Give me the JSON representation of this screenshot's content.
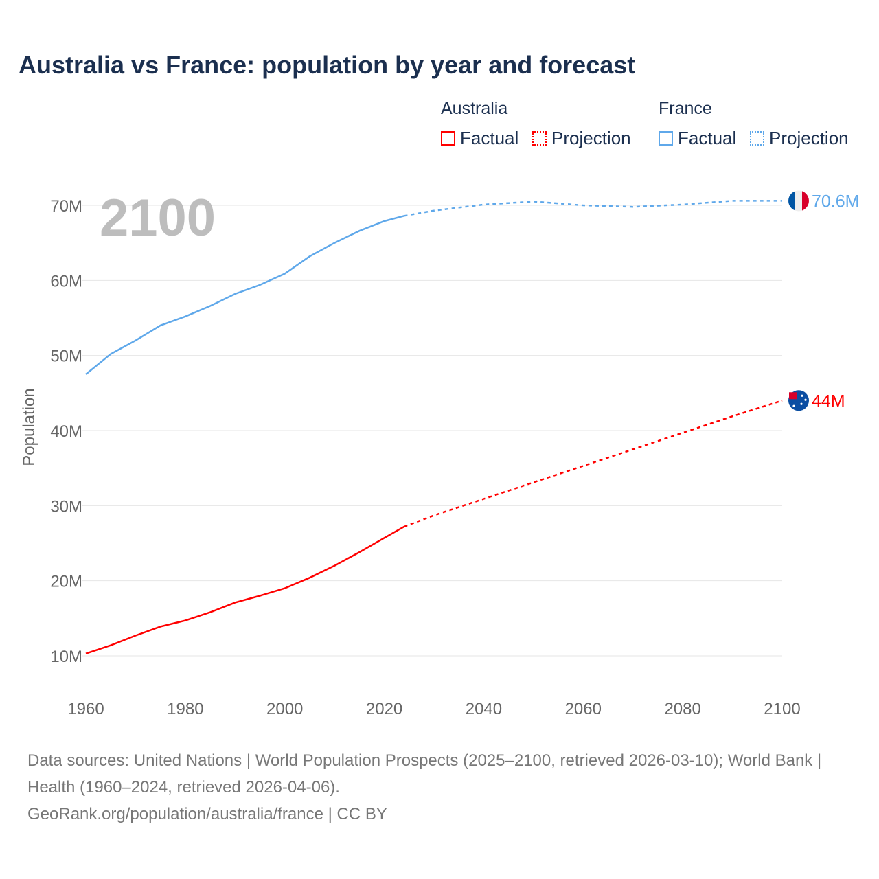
{
  "title": "Australia vs France: population by year and forecast",
  "legend": {
    "groups": [
      {
        "name": "Australia",
        "color": "#ff0000",
        "items": [
          "Factual",
          "Projection"
        ]
      },
      {
        "name": "France",
        "color": "#5fa8ea",
        "items": [
          "Factual",
          "Projection"
        ]
      }
    ]
  },
  "chart_data": {
    "type": "line",
    "title": "Australia vs France: population by year and forecast",
    "xlabel": "",
    "ylabel": "Population",
    "xlim": [
      1960,
      2100
    ],
    "ylim": [
      5,
      75
    ],
    "xticks": [
      "1960",
      "1980",
      "2000",
      "2020",
      "2040",
      "2060",
      "2080",
      "2100"
    ],
    "yticks": [
      "10M",
      "20M",
      "30M",
      "40M",
      "50M",
      "60M",
      "70M"
    ],
    "year_label": "2100",
    "series": [
      {
        "name": "France",
        "color": "#5fa8ea",
        "end_label": "70.6M",
        "factual": {
          "x": [
            1960,
            1965,
            1970,
            1975,
            1980,
            1985,
            1990,
            1995,
            2000,
            2005,
            2010,
            2015,
            2020,
            2024
          ],
          "y": [
            47.5,
            50.2,
            52.0,
            54.0,
            55.2,
            56.6,
            58.2,
            59.4,
            60.9,
            63.2,
            65.0,
            66.6,
            67.9,
            68.6
          ]
        },
        "projection": {
          "x": [
            2024,
            2030,
            2040,
            2050,
            2060,
            2070,
            2080,
            2090,
            2100
          ],
          "y": [
            68.6,
            69.3,
            70.1,
            70.5,
            70.0,
            69.8,
            70.1,
            70.6,
            70.6
          ]
        }
      },
      {
        "name": "Australia",
        "color": "#ff0000",
        "end_label": "44M",
        "factual": {
          "x": [
            1960,
            1965,
            1970,
            1975,
            1980,
            1985,
            1990,
            1995,
            2000,
            2005,
            2010,
            2015,
            2020,
            2024
          ],
          "y": [
            10.3,
            11.4,
            12.7,
            13.9,
            14.7,
            15.8,
            17.1,
            18.0,
            19.0,
            20.4,
            22.0,
            23.8,
            25.7,
            27.2
          ]
        },
        "projection": {
          "x": [
            2024,
            2030,
            2040,
            2050,
            2060,
            2070,
            2080,
            2090,
            2100
          ],
          "y": [
            27.2,
            28.7,
            30.9,
            33.1,
            35.3,
            37.5,
            39.7,
            41.9,
            44.0
          ]
        }
      }
    ]
  },
  "footer": {
    "line1": "Data sources: United Nations | World Population Prospects (2025–2100, retrieved 2026-03-10); World Bank | Health (1960–2024, retrieved 2026-04-06).",
    "line2": "GeoRank.org/population/australia/france | CC BY"
  }
}
